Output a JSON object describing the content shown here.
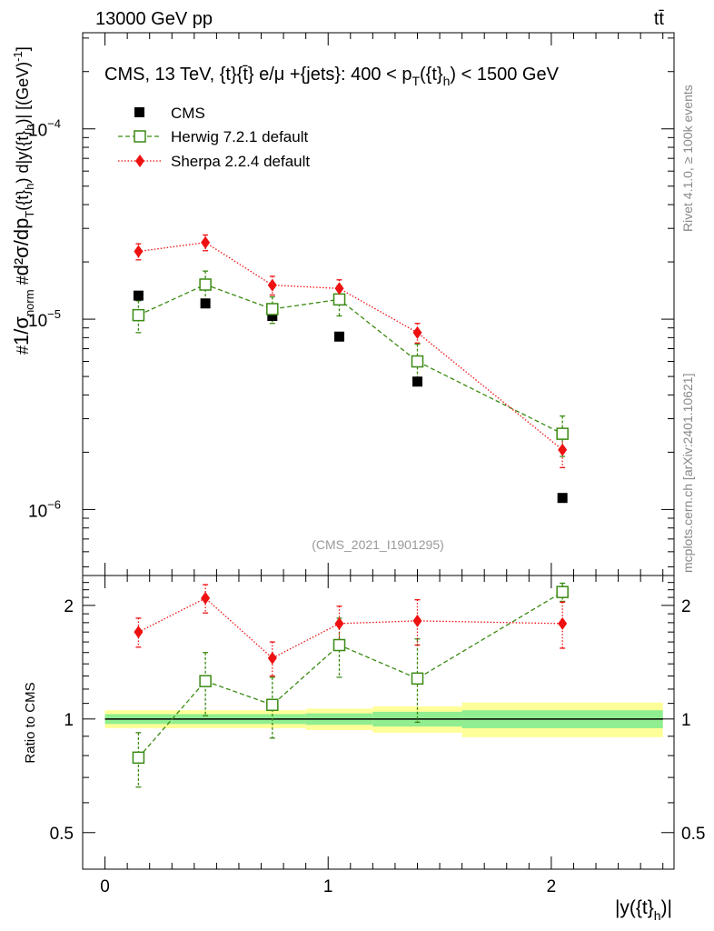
{
  "header": {
    "left": "13000 GeV pp",
    "right": "tt̄"
  },
  "side_labels": {
    "rivet": "Rivet 4.1.0, ≥ 100k events",
    "mcplots": "mcplots.cern.ch [arXiv:2401.10621]"
  },
  "main_plot": {
    "title": "CMS, 13 TeV, {t}{t̄} e/μ +{jets}: 400 <  p_T({t}_h) < 1500 GeV",
    "title_parts": {
      "pre": "CMS, 13 TeV, {t}{t̄} e/μ +{jets}: 400 <  p",
      "sub1": "T",
      "mid": "({t}",
      "sub2": "h",
      "post": ") < 1500 GeV"
    },
    "ylabel": "#1/σ_norm #d²σ/dp_T({t}_h) d|y({t}_h)| [(GeV)^-1]",
    "ytick_labels": [
      "10",
      "10",
      "10"
    ],
    "ytick_exponents": [
      "−4",
      "−5",
      "−6"
    ],
    "analysis_id": "(CMS_2021_I1901295)"
  },
  "legend": {
    "cms": "CMS",
    "herwig": "Herwig 7.2.1 default",
    "sherpa": "Sherpa 2.2.4 default"
  },
  "ratio_plot": {
    "ylabel": "Ratio to CMS",
    "ytick_labels": [
      "0.5",
      "1",
      "2"
    ],
    "xtick_labels": [
      "0",
      "1",
      "2"
    ],
    "xlabel": "|y({t}_h)|"
  },
  "colors": {
    "cms": "#000000",
    "herwig": "#3a8a12",
    "sherpa": "#ee1111",
    "band_yellow": "#ffff99",
    "band_green": "#90ee90",
    "side_text": "#888888"
  },
  "chart_data": [
    {
      "type": "scatter",
      "title": "CMS, 13 TeV, {t}{t̄} e/μ +{jets}: 400 < p_T({t}_h) < 1500 GeV",
      "xlabel": "|y({t}_h)|",
      "ylabel": "#1/σ_norm #d²σ/dp_T({t}_h) d|y({t}_h)| [(GeV)^-1]",
      "yscale": "log",
      "xlim": [
        -0.1,
        2.55
      ],
      "ylim": [
        4.5e-07,
        0.00032
      ],
      "series": [
        {
          "name": "CMS",
          "x": [
            0.15,
            0.45,
            0.75,
            1.05,
            1.4,
            2.05
          ],
          "y": [
            1.33e-05,
            1.21e-05,
            1.04e-05,
            8.1e-06,
            4.7e-06,
            1.15e-06
          ],
          "err_up": [
            0,
            0,
            0,
            0,
            0,
            0
          ],
          "err_down": [
            0,
            0,
            0,
            0,
            0,
            0
          ]
        },
        {
          "name": "Herwig 7.2.1 default",
          "x": [
            0.15,
            0.45,
            0.75,
            1.05,
            1.4,
            2.05
          ],
          "y": [
            1.05e-05,
            1.52e-05,
            1.13e-05,
            1.27e-05,
            6e-06,
            2.5e-06
          ],
          "err_up": [
            2e-06,
            2.7e-06,
            1.8e-06,
            2.3e-06,
            1.4e-06,
            6e-07
          ],
          "err_down": [
            2e-06,
            2.7e-06,
            1.8e-06,
            2.3e-06,
            1.4e-06,
            6e-07
          ]
        },
        {
          "name": "Sherpa 2.2.4 default",
          "x": [
            0.15,
            0.45,
            0.75,
            1.05,
            1.4,
            2.05
          ],
          "y": [
            2.27e-05,
            2.53e-05,
            1.51e-05,
            1.45e-05,
            8.5e-06,
            2.06e-06
          ],
          "err_up": [
            2.2e-06,
            2.4e-06,
            1.7e-06,
            1.6e-06,
            1e-06,
            4e-07
          ],
          "err_down": [
            2.2e-06,
            2.4e-06,
            1.7e-06,
            1.6e-06,
            1e-06,
            4e-07
          ]
        }
      ]
    },
    {
      "type": "scatter",
      "title": "",
      "xlabel": "|y({t}_h)|",
      "ylabel": "Ratio to CMS",
      "yscale": "log",
      "xlim": [
        -0.1,
        2.55
      ],
      "ylim": [
        0.4,
        2.4
      ],
      "bins": [
        {
          "lo": 0.0,
          "hi": 0.3,
          "stat": 0.03,
          "total": 0.055
        },
        {
          "lo": 0.3,
          "hi": 0.6,
          "stat": 0.03,
          "total": 0.055
        },
        {
          "lo": 0.6,
          "hi": 0.9,
          "stat": 0.03,
          "total": 0.055
        },
        {
          "lo": 0.9,
          "hi": 1.2,
          "stat": 0.035,
          "total": 0.065
        },
        {
          "lo": 1.2,
          "hi": 1.6,
          "stat": 0.045,
          "total": 0.08
        },
        {
          "lo": 1.6,
          "hi": 2.5,
          "stat": 0.055,
          "total": 0.105
        }
      ],
      "reference_line": 1,
      "series": [
        {
          "name": "Herwig 7.2.1 default",
          "x": [
            0.15,
            0.45,
            0.75,
            1.05,
            1.4,
            2.05
          ],
          "y": [
            0.79,
            1.26,
            1.09,
            1.57,
            1.28,
            2.17
          ],
          "err_up": [
            0.13,
            0.24,
            0.2,
            0.28,
            0.35,
            0.12
          ],
          "err_down": [
            0.13,
            0.24,
            0.2,
            0.28,
            0.3,
            0.12
          ]
        },
        {
          "name": "Sherpa 2.2.4 default",
          "x": [
            0.15,
            0.45,
            0.75,
            1.05,
            1.4,
            2.05
          ],
          "y": [
            1.7,
            2.09,
            1.45,
            1.79,
            1.82,
            1.79
          ],
          "err_up": [
            0.15,
            0.18,
            0.15,
            0.2,
            0.25,
            0.25
          ],
          "err_down": [
            0.15,
            0.18,
            0.15,
            0.2,
            0.25,
            0.25
          ]
        }
      ]
    }
  ]
}
